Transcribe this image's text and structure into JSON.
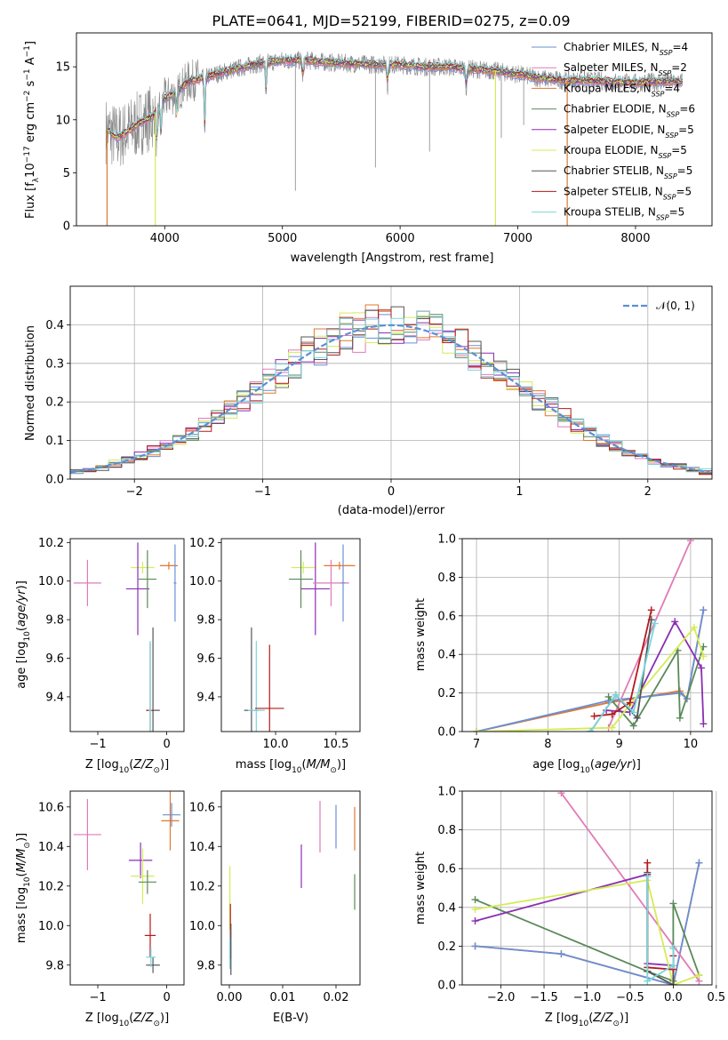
{
  "title": "PLATE=0641, MJD=52199, FIBERID=0275, z=0.09",
  "colors": {
    "Chabrier MILES": "#6a8fd6",
    "Salpeter MILES": "#e17ab8",
    "Kroupa MILES": "#e0782f",
    "Chabrier ELODIE": "#5a8a5a",
    "Salpeter ELODIE": "#8b2fb0",
    "Kroupa ELODIE": "#d4ec55",
    "Chabrier STELIB": "#555555",
    "Salpeter STELIB": "#b41a1a",
    "Kroupa STELIB": "#7ad6dc",
    "data": "#888888",
    "normal": "#5b8fd6"
  },
  "chart_data": [
    {
      "id": "spectrum",
      "type": "line",
      "title": "PLATE=0641, MJD=52199, FIBERID=0275, z=0.09",
      "xlabel": "wavelength [Angstrom, rest frame]",
      "ylabel": "Flux [f_λ10^-17 erg cm^-2 s^-1 A^-1]",
      "xlim": [
        3250,
        8650
      ],
      "ylim": [
        0,
        18.2
      ],
      "xticks": [
        "4000",
        "5000",
        "6000",
        "7000",
        "8000"
      ],
      "yticks": [
        "0",
        "5",
        "10",
        "15"
      ],
      "grid": false,
      "legend_position": "right",
      "legend": [
        "Chabrier MILES, N_SSP=4",
        "Salpeter MILES, N_SSP=2",
        "Kroupa MILES, N_SSP=4",
        "Chabrier ELODIE, N_SSP=6",
        "Salpeter ELODIE, N_SSP=5",
        "Kroupa ELODIE, N_SSP=5",
        "Chabrier STELIB, N_SSP=5",
        "Salpeter STELIB, N_SSP=5",
        "Kroupa STELIB, N_SSP=5"
      ],
      "continuum": {
        "wavelength": [
          3500,
          3600,
          3700,
          3800,
          3900,
          4000,
          4100,
          4200,
          4400,
          4600,
          4800,
          5000,
          5200,
          5400,
          5600,
          5800,
          6000,
          6200,
          6400,
          6600,
          6800,
          7000,
          7200,
          7400,
          7600,
          7800,
          8000,
          8200,
          8400
        ],
        "flux": [
          9.0,
          8.3,
          9.0,
          9.8,
          10.3,
          12.0,
          12.6,
          13.6,
          14.2,
          14.8,
          15.3,
          15.6,
          15.6,
          15.4,
          15.3,
          15.2,
          15.2,
          15.0,
          15.0,
          14.8,
          14.6,
          14.3,
          13.9,
          13.7,
          13.7,
          13.6,
          13.5,
          13.6,
          13.6
        ]
      },
      "absorption_lines": [
        {
          "wavelength": 3934,
          "depth": 4.0
        },
        {
          "wavelength": 3968,
          "depth": 3.0
        },
        {
          "wavelength": 4102,
          "depth": 2.5
        },
        {
          "wavelength": 4340,
          "depth": 5.0
        },
        {
          "wavelength": 4861,
          "depth": 3.0
        },
        {
          "wavelength": 5175,
          "depth": 2.0
        },
        {
          "wavelength": 5893,
          "depth": 2.0
        },
        {
          "wavelength": 6563,
          "depth": 2.0
        }
      ],
      "model_dropouts": [
        {
          "wavelength": 3510,
          "series": "Kroupa MILES"
        },
        {
          "wavelength": 3920,
          "series": "Kroupa ELODIE"
        },
        {
          "wavelength": 6810,
          "series": "Kroupa ELODIE"
        },
        {
          "wavelength": 7420,
          "series": "Kroupa MILES"
        }
      ],
      "data_spikes": [
        {
          "wavelength": 5110,
          "flux": 3.3
        },
        {
          "wavelength": 5790,
          "flux": 5.5
        },
        {
          "wavelength": 6250,
          "flux": 7.0
        },
        {
          "wavelength": 7050,
          "flux": 9.5
        },
        {
          "wavelength": 6860,
          "flux": 8.3
        }
      ]
    },
    {
      "id": "residuals",
      "type": "histogram",
      "xlabel": "(data-model)/error",
      "ylabel": "Normed distribution",
      "xlim": [
        -2.5,
        2.5
      ],
      "ylim": [
        0,
        0.5
      ],
      "xticks": [
        "−2",
        "−1",
        "0",
        "1",
        "2"
      ],
      "yticks": [
        "0.0",
        "0.1",
        "0.2",
        "0.3",
        "0.4"
      ],
      "grid": true,
      "legend": [
        "𝒩(0, 1)"
      ],
      "legend_position": "top-right",
      "bin_width": 0.1,
      "reference_curve": "standard normal N(0,1)"
    },
    {
      "id": "age-vs-Z",
      "type": "scatter",
      "xlabel": "Z [log10(Z/Z⊙)]",
      "ylabel": "age [log10(age/yr)]",
      "xlim": [
        -1.4,
        0.25
      ],
      "ylim": [
        9.22,
        10.22
      ],
      "xticks": [
        "−1",
        "0"
      ],
      "yticks": [
        "9.4",
        "9.6",
        "9.8",
        "10.0",
        "10.2"
      ],
      "grid": false,
      "points": [
        {
          "series": "Salpeter MILES",
          "x": -1.15,
          "y": 9.99,
          "xerr": 0.2,
          "yerr": 0.12
        },
        {
          "series": "Kroupa ELODIE",
          "x": -0.35,
          "y": 10.07,
          "xerr": 0.17,
          "yerr": 0.03
        },
        {
          "series": "Salpeter ELODIE",
          "x": -0.42,
          "y": 9.96,
          "xerr": 0.17,
          "yerr": 0.24
        },
        {
          "series": "Chabrier ELODIE",
          "x": -0.28,
          "y": 10.01,
          "xerr": 0.13,
          "yerr": 0.15
        },
        {
          "series": "Kroupa MILES",
          "x": 0.03,
          "y": 10.08,
          "xerr": 0.13,
          "yerr": 0.02
        },
        {
          "series": "Chabrier MILES",
          "x": 0.12,
          "y": 9.99,
          "xerr": 0.02,
          "yerr": 0.2
        },
        {
          "series": "Chabrier STELIB",
          "x": -0.2,
          "y": 9.33,
          "xerr": 0.1,
          "yerr": 0.43
        },
        {
          "series": "Salpeter STELIB",
          "x": -0.24,
          "y": 9.33,
          "xerr": 0.05,
          "yerr": 0.35
        },
        {
          "series": "Kroupa STELIB",
          "x": -0.24,
          "y": 9.33,
          "xerr": 0.02,
          "yerr": 0.36
        }
      ]
    },
    {
      "id": "age-vs-mass",
      "type": "scatter",
      "xlabel": "mass [log10(M/M⊙)]",
      "ylabel": "",
      "xlim": [
        9.55,
        10.7
      ],
      "ylim": [
        9.22,
        10.22
      ],
      "xticks": [
        "10.0",
        "10.5"
      ],
      "yticks": [
        "9.4",
        "9.6",
        "9.8",
        "10.0",
        "10.2"
      ],
      "grid": false,
      "points": [
        {
          "series": "Kroupa ELODIE",
          "x": 10.23,
          "y": 10.07,
          "xerr": 0.1,
          "yerr": 0.03
        },
        {
          "series": "Chabrier ELODIE",
          "x": 10.21,
          "y": 10.01,
          "xerr": 0.1,
          "yerr": 0.15
        },
        {
          "series": "Salpeter ELODIE",
          "x": 10.33,
          "y": 9.96,
          "xerr": 0.12,
          "yerr": 0.24
        },
        {
          "series": "Kroupa MILES",
          "x": 10.53,
          "y": 10.08,
          "xerr": 0.13,
          "yerr": 0.02
        },
        {
          "series": "Salpeter MILES",
          "x": 10.46,
          "y": 9.99,
          "xerr": 0.15,
          "yerr": 0.12
        },
        {
          "series": "Chabrier MILES",
          "x": 10.56,
          "y": 9.99,
          "xerr": 0.02,
          "yerr": 0.2
        },
        {
          "series": "Chabrier STELIB",
          "x": 9.8,
          "y": 9.33,
          "xerr": 0.06,
          "yerr": 0.43
        },
        {
          "series": "Kroupa STELIB",
          "x": 9.84,
          "y": 9.33,
          "xerr": 0.07,
          "yerr": 0.36
        },
        {
          "series": "Salpeter STELIB",
          "x": 9.95,
          "y": 9.34,
          "xerr": 0.12,
          "yerr": 0.33
        }
      ]
    },
    {
      "id": "weight-vs-age",
      "type": "line",
      "xlabel": "age [log10(age/yr)]",
      "ylabel": "mass weight",
      "xlim": [
        6.8,
        10.3
      ],
      "ylim": [
        0,
        1
      ],
      "xticks": [
        "7",
        "8",
        "9",
        "10"
      ],
      "yticks": [
        "0.0",
        "0.2",
        "0.4",
        "0.6",
        "0.8",
        "1.0"
      ],
      "grid": true,
      "series": [
        {
          "name": "Kroupa MILES",
          "x": [
            7.0,
            8.85,
            9.85,
            9.95,
            10.18
          ],
          "y": [
            0.0,
            0.15,
            0.21,
            0.17,
            0.63
          ]
        },
        {
          "name": "Chabrier MILES",
          "x": [
            7.0,
            8.85,
            9.85,
            9.95,
            10.18
          ],
          "y": [
            0.0,
            0.16,
            0.2,
            0.17,
            0.63
          ]
        },
        {
          "name": "Salpeter MILES",
          "x": [
            8.85,
            10.0
          ],
          "y": [
            0.02,
            0.99
          ]
        },
        {
          "name": "Chabrier ELODIE",
          "x": [
            8.85,
            9.2,
            9.82,
            9.85,
            10.18
          ],
          "y": [
            0.18,
            0.03,
            0.42,
            0.07,
            0.44
          ]
        },
        {
          "name": "Salpeter ELODIE",
          "x": [
            8.82,
            9.15,
            9.78,
            10.15,
            10.18
          ],
          "y": [
            0.11,
            0.1,
            0.57,
            0.33,
            0.04
          ]
        },
        {
          "name": "Kroupa ELODIE",
          "x": [
            7.0,
            8.9,
            9.15,
            10.05,
            10.18
          ],
          "y": [
            0.0,
            0.02,
            0.14,
            0.54,
            0.39
          ]
        },
        {
          "name": "Chabrier STELIB",
          "x": [
            8.6,
            8.95,
            9.25,
            9.45
          ],
          "y": [
            0.0,
            0.19,
            0.07,
            0.58
          ]
        },
        {
          "name": "Salpeter STELIB",
          "x": [
            8.65,
            8.9,
            9.15,
            9.45
          ],
          "y": [
            0.08,
            0.09,
            0.15,
            0.63
          ]
        },
        {
          "name": "Kroupa STELIB",
          "x": [
            8.6,
            8.95,
            9.2,
            9.5
          ],
          "y": [
            0.0,
            0.19,
            0.1,
            0.56
          ]
        }
      ]
    },
    {
      "id": "mass-vs-Z",
      "type": "scatter",
      "xlabel": "Z [log10(Z/Z⊙)]",
      "ylabel": "mass [log10(M/M⊙)]",
      "xlim": [
        -1.4,
        0.25
      ],
      "ylim": [
        9.7,
        10.68
      ],
      "xticks": [
        "−1",
        "0"
      ],
      "yticks": [
        "9.8",
        "10.0",
        "10.2",
        "10.4",
        "10.6"
      ],
      "grid": false,
      "points": [
        {
          "series": "Salpeter MILES",
          "x": -1.15,
          "y": 10.46,
          "xerr": 0.2,
          "yerr": 0.18
        },
        {
          "series": "Chabrier MILES",
          "x": 0.07,
          "y": 10.56,
          "xerr": 0.13,
          "yerr": 0.06
        },
        {
          "series": "Kroupa MILES",
          "x": 0.05,
          "y": 10.53,
          "xerr": 0.13,
          "yerr": 0.15
        },
        {
          "series": "Salpeter ELODIE",
          "x": -0.38,
          "y": 10.33,
          "xerr": 0.17,
          "yerr": 0.09
        },
        {
          "series": "Kroupa ELODIE",
          "x": -0.35,
          "y": 10.25,
          "xerr": 0.17,
          "yerr": 0.14
        },
        {
          "series": "Chabrier ELODIE",
          "x": -0.28,
          "y": 10.22,
          "xerr": 0.13,
          "yerr": 0.06
        },
        {
          "series": "Salpeter STELIB",
          "x": -0.24,
          "y": 9.95,
          "xerr": 0.08,
          "yerr": 0.11
        },
        {
          "series": "Chabrier STELIB",
          "x": -0.2,
          "y": 9.8,
          "xerr": 0.1,
          "yerr": 0.04
        },
        {
          "series": "Kroupa STELIB",
          "x": -0.23,
          "y": 9.84,
          "xerr": 0.07,
          "yerr": 0.05
        }
      ]
    },
    {
      "id": "mass-vs-EBV",
      "type": "scatter",
      "xlabel": "E(B-V)",
      "ylabel": "",
      "xlim": [
        -0.0015,
        0.0245
      ],
      "ylim": [
        9.7,
        10.68
      ],
      "xticks": [
        "0.00",
        "0.01",
        "0.02"
      ],
      "yticks": [
        "9.8",
        "10.0",
        "10.2",
        "10.4",
        "10.6"
      ],
      "grid": false,
      "points": [
        {
          "series": "Kroupa ELODIE",
          "x": 0.0001,
          "y": 10.14,
          "yerr": 0.16
        },
        {
          "series": "Salpeter STELIB",
          "x": 0.0002,
          "y": 9.97,
          "yerr": 0.14
        },
        {
          "series": "Kroupa STELIB",
          "x": 0.0001,
          "y": 9.86,
          "yerr": 0.08
        },
        {
          "series": "Chabrier STELIB",
          "x": 0.0003,
          "y": 9.88,
          "yerr": 0.13
        },
        {
          "series": "Salpeter ELODIE",
          "x": 0.0135,
          "y": 10.3,
          "yerr": 0.11
        },
        {
          "series": "Salpeter MILES",
          "x": 0.017,
          "y": 10.5,
          "yerr": 0.13
        },
        {
          "series": "Chabrier MILES",
          "x": 0.02,
          "y": 10.5,
          "yerr": 0.11
        },
        {
          "series": "Kroupa MILES",
          "x": 0.0235,
          "y": 10.49,
          "yerr": 0.11
        },
        {
          "series": "Chabrier ELODIE",
          "x": 0.0235,
          "y": 10.17,
          "yerr": 0.09
        }
      ]
    },
    {
      "id": "weight-vs-Z",
      "type": "line",
      "xlabel": "Z [log10(Z/Z⊙)]",
      "ylabel": "mass weight",
      "xlim": [
        -2.45,
        0.45
      ],
      "ylim": [
        0,
        1
      ],
      "xticks": [
        "−2.0",
        "−1.5",
        "−1.0",
        "−0.5",
        "0.0",
        "0.5"
      ],
      "yticks": [
        "0.0",
        "0.2",
        "0.4",
        "0.6",
        "0.8",
        "1.0"
      ],
      "grid": true,
      "series": [
        {
          "name": "Kroupa MILES",
          "x": [
            -2.3,
            -1.3,
            0.0,
            0.3
          ],
          "y": [
            0.2,
            0.16,
            0.0,
            0.63
          ]
        },
        {
          "name": "Chabrier MILES",
          "x": [
            -2.3,
            -1.3,
            0.0,
            0.3
          ],
          "y": [
            0.2,
            0.16,
            0.0,
            0.63
          ]
        },
        {
          "name": "Salpeter MILES",
          "x": [
            -1.3,
            0.3
          ],
          "y": [
            0.99,
            0.02
          ]
        },
        {
          "name": "Chabrier ELODIE",
          "x": [
            -2.3,
            -0.3,
            0.0,
            0.0,
            0.3
          ],
          "y": [
            0.44,
            0.07,
            0.02,
            0.42,
            0.05
          ]
        },
        {
          "name": "Salpeter ELODIE",
          "x": [
            -2.3,
            -0.3,
            -0.3,
            0.0
          ],
          "y": [
            0.33,
            0.57,
            0.11,
            0.1
          ]
        },
        {
          "name": "Kroupa ELODIE",
          "x": [
            -2.3,
            -0.3,
            0.0,
            0.3
          ],
          "y": [
            0.39,
            0.54,
            0.0,
            0.05
          ]
        },
        {
          "name": "Chabrier STELIB",
          "x": [
            -0.3,
            -0.3,
            0.0,
            0.0
          ],
          "y": [
            0.58,
            0.07,
            0.0,
            0.19
          ]
        },
        {
          "name": "Salpeter STELIB",
          "x": [
            -0.3,
            -0.3,
            0.0,
            0.0
          ],
          "y": [
            0.63,
            0.09,
            0.08,
            0.15
          ]
        },
        {
          "name": "Kroupa STELIB",
          "x": [
            -0.3,
            -0.3,
            0.0,
            0.0
          ],
          "y": [
            0.56,
            0.02,
            0.1,
            0.19
          ]
        }
      ]
    }
  ]
}
